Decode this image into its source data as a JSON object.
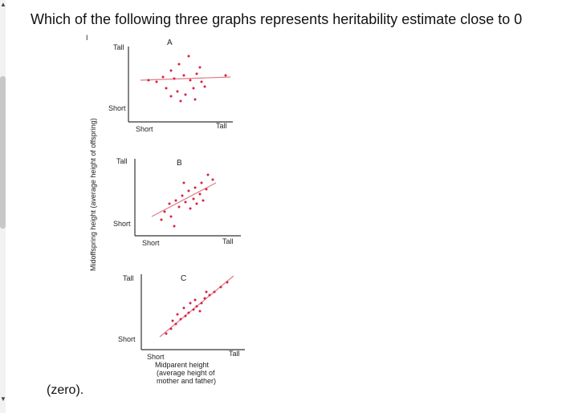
{
  "question": {
    "text": "Which of the following three graphs represents heritability estimate close to 0",
    "continuation": "(zero)."
  },
  "figure": {
    "y_axis_label": "Midoffspring height (average height of offspring)",
    "x_axis_caption": [
      "Midparent height",
      "(average height of",
      "mother and father)"
    ],
    "tick_tall": "Tall",
    "tick_short": "Short",
    "marker": "I",
    "panels": [
      {
        "label": "A"
      },
      {
        "label": "B"
      },
      {
        "label": "C"
      }
    ]
  },
  "colors": {
    "dots": "#d6213f",
    "line": "#e07a8a",
    "axis": "#333333"
  },
  "icons": [
    "scroll-up-arrow-icon",
    "scroll-down-arrow-icon"
  ]
}
